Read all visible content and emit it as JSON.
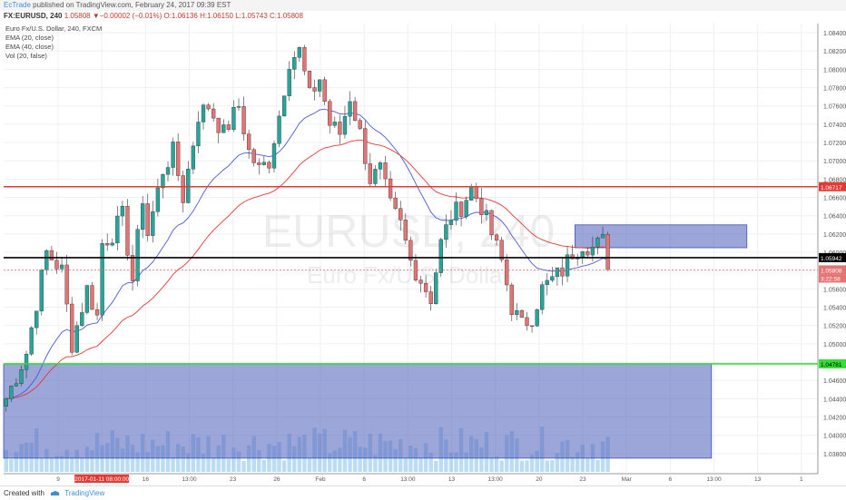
{
  "header": {
    "author": "EcTrade",
    "published": "published on TradingView.com, February 24, 2017 09:39 EST",
    "symbol": "FX:EURUSD, 240",
    "ohlc": "1.05808 ▼−0.00002 (−0.01%) O:1.06136 H:1.06150 L:1.05743 C:1.05808"
  },
  "legend": {
    "title": "Euro Fx/U.S. Dollar, 240, FXCM",
    "items": [
      "EMA (20, close)",
      "EMA (40, close)",
      "Vol (20, false)"
    ]
  },
  "watermark": {
    "symbol": "EURUSD, 240",
    "name": "Euro Fx/U.S. Dollar"
  },
  "footer": {
    "created": "Created with",
    "brand": "TradingView"
  },
  "chart_data": {
    "type": "candlestick",
    "title": "Euro Fx/U.S. Dollar, 240, FXCM",
    "ylim": [
      1.036,
      1.085
    ],
    "y_ticks": [
      "1.08400",
      "1.08200",
      "1.08000",
      "1.07800",
      "1.07600",
      "1.07400",
      "1.07200",
      "1.07000",
      "1.06800",
      "1.06600",
      "1.06400",
      "1.06200",
      "1.06000",
      "1.05800",
      "1.05600",
      "1.05400",
      "1.05200",
      "1.05000",
      "1.04800",
      "1.04600",
      "1.04400",
      "1.04200",
      "1.04000",
      "1.03800"
    ],
    "x_ticks": [
      "9",
      "2017-01-11 08:00:00",
      "16",
      "13:00",
      "23",
      "26",
      "Feb",
      "6",
      "13:00",
      "13",
      "13:00",
      "20",
      "23",
      "Mar",
      "6",
      "13:00",
      "13",
      "1"
    ],
    "path_points": [
      [
        0,
        1.044
      ],
      [
        4,
        1.049
      ],
      [
        8,
        1.06
      ],
      [
        11,
        1.058
      ],
      [
        13,
        1.05
      ],
      [
        16,
        1.056
      ],
      [
        18,
        1.053
      ],
      [
        19,
        1.061
      ],
      [
        21,
        1.062
      ],
      [
        23,
        1.064
      ],
      [
        25,
        1.057
      ],
      [
        27,
        1.066
      ],
      [
        28,
        1.062
      ],
      [
        31,
        1.069
      ],
      [
        33,
        1.071
      ],
      [
        35,
        1.066
      ],
      [
        38,
        1.075
      ],
      [
        40,
        1.076
      ],
      [
        43,
        1.073
      ],
      [
        46,
        1.076
      ],
      [
        48,
        1.071
      ],
      [
        50,
        1.069
      ],
      [
        52,
        1.07
      ],
      [
        54,
        1.075
      ],
      [
        56,
        1.081
      ],
      [
        58,
        1.082
      ],
      [
        60,
        1.077
      ],
      [
        62,
        1.079
      ],
      [
        64,
        1.074
      ],
      [
        66,
        1.073
      ],
      [
        68,
        1.077
      ],
      [
        70,
        1.073
      ],
      [
        72,
        1.068
      ],
      [
        74,
        1.069
      ],
      [
        76,
        1.065
      ],
      [
        78,
        1.063
      ],
      [
        80,
        1.059
      ],
      [
        82,
        1.057
      ],
      [
        84,
        1.055
      ],
      [
        86,
        1.061
      ],
      [
        88,
        1.064
      ],
      [
        90,
        1.065
      ],
      [
        92,
        1.067
      ],
      [
        94,
        1.065
      ],
      [
        96,
        1.062
      ],
      [
        98,
        1.059
      ],
      [
        100,
        1.054
      ],
      [
        102,
        1.052
      ],
      [
        104,
        1.053
      ],
      [
        106,
        1.056
      ],
      [
        108,
        1.057
      ],
      [
        110,
        1.058
      ],
      [
        112,
        1.06
      ],
      [
        114,
        1.061
      ],
      [
        116,
        1.0605
      ],
      [
        118,
        1.0612
      ],
      [
        119,
        1.0581
      ]
    ],
    "horizontal_levels": [
      {
        "value": 1.06717,
        "label": "1.06717",
        "color": "#e53935"
      },
      {
        "value": 1.05942,
        "label": "1.05942",
        "color": "#000000"
      },
      {
        "value": 1.04781,
        "label": "1.04781",
        "color": "#33dd33"
      },
      {
        "value": 1.05808,
        "label": "1.05808",
        "color": "#e57373"
      }
    ],
    "countdown": "3:22:58",
    "zones": [
      {
        "from_bar": 113,
        "to_bar": 146,
        "low": 1.0605,
        "high": 1.063,
        "color": "#5c6bc0"
      },
      {
        "from_bar": 0,
        "to_bar": 139,
        "low": 1.0375,
        "high": 1.0478,
        "color": "#5c6bc0"
      }
    ],
    "highlight_tick": "2017-01-11 08:00:00",
    "colors": {
      "up": "#26a69a",
      "down": "#e57373",
      "ema20": "#4a5bd6",
      "ema40": "#e53935",
      "volume": "#3d9fe0"
    }
  }
}
